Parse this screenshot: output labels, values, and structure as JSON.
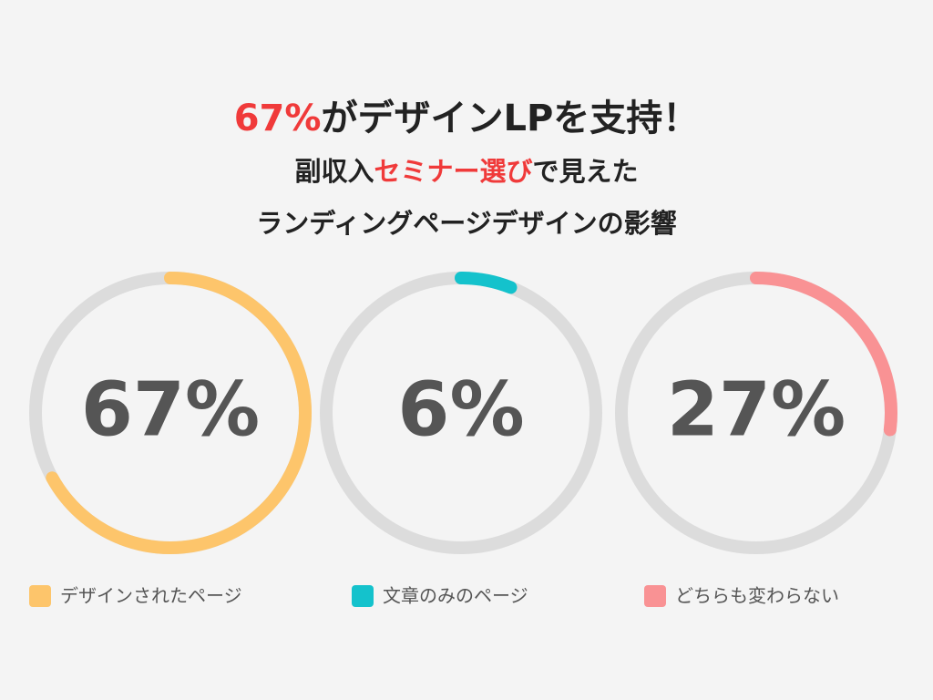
{
  "chart_data": {
    "type": "gauge",
    "title": [
      {
        "text": "67%",
        "color": "#f03a3a"
      },
      {
        "text": "がデザインLPを支持！"
      }
    ],
    "subtitle": [
      [
        {
          "text": "副収入"
        },
        {
          "text": "セミナー選び",
          "color": "#f03a3a"
        },
        {
          "text": "で見えた"
        }
      ],
      [
        {
          "text": "ランディングページデザインの影響"
        }
      ]
    ],
    "categories": [
      "デザインされたページ",
      "文章のみのページ",
      "どちらも変わらない"
    ],
    "values": [
      67,
      6,
      27
    ],
    "value_labels": [
      "67%",
      "6%",
      "27%"
    ],
    "colors": [
      "#fdc56b",
      "#14c2cc",
      "#f99294"
    ],
    "track_color": "#dcdcdc",
    "ylim": [
      0,
      100
    ]
  }
}
